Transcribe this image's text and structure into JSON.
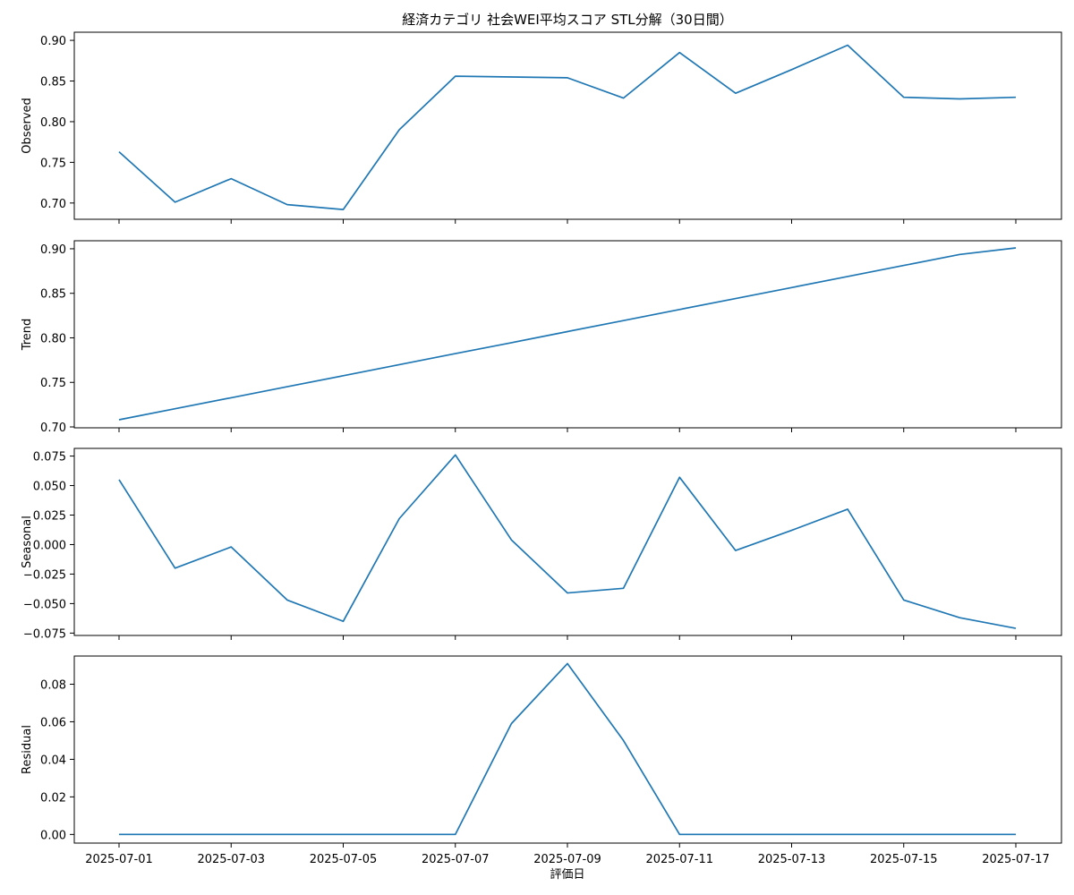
{
  "title": "経済カテゴリ 社会WEI平均スコア STL分解（30日間）",
  "xlabel": "評価日",
  "colors": {
    "line": "#1f77b4",
    "axes": "#000000",
    "background": "#ffffff"
  },
  "chart_data": {
    "type": "line",
    "title": "経済カテゴリ 社会WEI平均スコア STL分解（30日間）",
    "xlabel": "評価日",
    "x": [
      "2025-07-01",
      "2025-07-02",
      "2025-07-03",
      "2025-07-04",
      "2025-07-05",
      "2025-07-06",
      "2025-07-07",
      "2025-07-08",
      "2025-07-09",
      "2025-07-10",
      "2025-07-11",
      "2025-07-12",
      "2025-07-13",
      "2025-07-14",
      "2025-07-15",
      "2025-07-16",
      "2025-07-17"
    ],
    "x_ticks": [
      "2025-07-01",
      "2025-07-03",
      "2025-07-05",
      "2025-07-07",
      "2025-07-09",
      "2025-07-11",
      "2025-07-13",
      "2025-07-15",
      "2025-07-17"
    ],
    "grid": false,
    "panels": [
      {
        "ylabel": "Observed",
        "ylim": [
          0.68,
          0.91
        ],
        "yticks": [
          "0.70",
          "0.75",
          "0.80",
          "0.85",
          "0.90"
        ],
        "values": [
          0.763,
          0.701,
          0.73,
          0.698,
          0.692,
          0.79,
          0.856,
          0.855,
          0.854,
          0.829,
          0.885,
          0.835,
          0.864,
          0.894,
          0.83,
          0.828,
          0.83
        ]
      },
      {
        "ylabel": "Trend",
        "ylim": [
          0.699,
          0.909
        ],
        "yticks": [
          "0.70",
          "0.75",
          "0.80",
          "0.85",
          "0.90"
        ],
        "values": [
          0.708,
          0.7204,
          0.7328,
          0.7451,
          0.7575,
          0.7699,
          0.7823,
          0.7946,
          0.807,
          0.8194,
          0.8318,
          0.8441,
          0.8565,
          0.8689,
          0.8813,
          0.8936,
          0.901
        ]
      },
      {
        "ylabel": "Seasonal",
        "ylim": [
          -0.077,
          0.0815
        ],
        "yticks": [
          "−0.075",
          "−0.050",
          "−0.025",
          "0.000",
          "0.025",
          "0.050",
          "0.075"
        ],
        "values": [
          0.055,
          -0.02,
          -0.002,
          -0.047,
          -0.065,
          0.022,
          0.076,
          0.004,
          -0.041,
          -0.037,
          0.057,
          -0.005,
          0.012,
          0.03,
          -0.047,
          -0.062,
          -0.071
        ]
      },
      {
        "ylabel": "Residual",
        "ylim": [
          -0.0046,
          0.095
        ],
        "yticks": [
          "0.00",
          "0.02",
          "0.04",
          "0.06",
          "0.08"
        ],
        "values": [
          0,
          0,
          0,
          0,
          0,
          0,
          0,
          0.059,
          0.091,
          0.05,
          0,
          0,
          0,
          0,
          0,
          0,
          0
        ]
      }
    ]
  }
}
